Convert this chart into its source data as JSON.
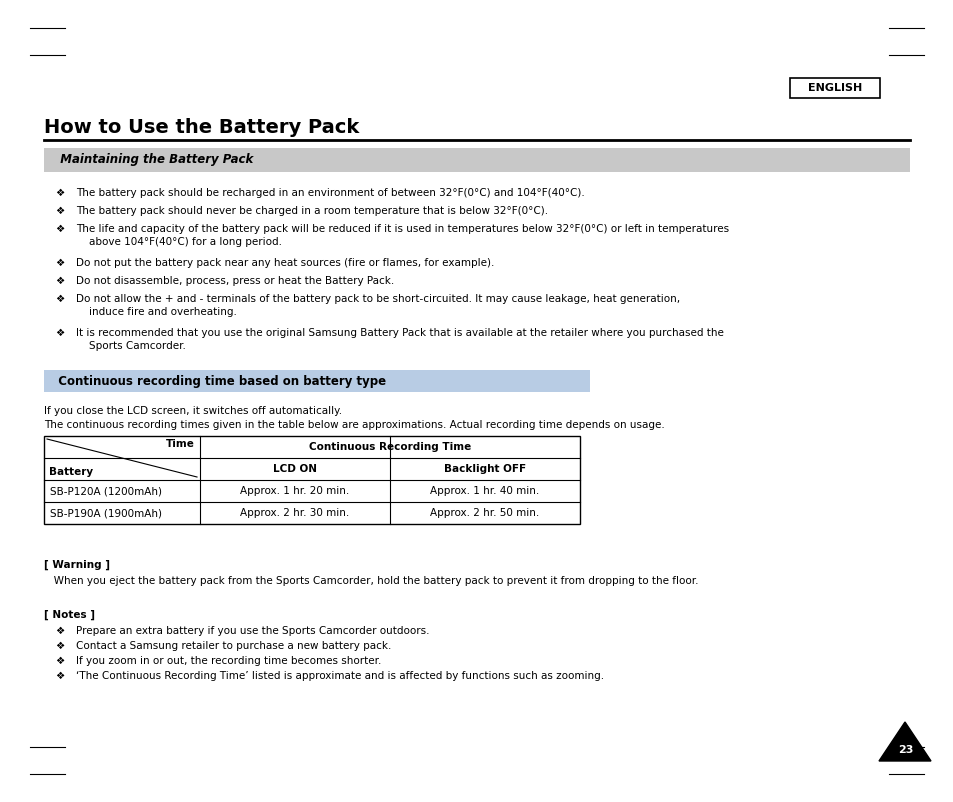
{
  "bg_color": "#ffffff",
  "english_box_text": "ENGLISH",
  "main_title": "How to Use the Battery Pack",
  "section1_header": "  Maintaining the Battery Pack",
  "section1_bg": "#c8c8c8",
  "bullet_symbol": "❖",
  "bullets": [
    "The battery pack should be recharged in an environment of between 32°F(0°C) and 104°F(40°C).",
    "The battery pack should never be charged in a room temperature that is below 32°F(0°C).",
    "The life and capacity of the battery pack will be reduced if it is used in temperatures below 32°F(0°C) or left in temperatures\n    above 104°F(40°C) for a long period.",
    "Do not put the battery pack near any heat sources (fire or flames, for example).",
    "Do not disassemble, process, press or heat the Battery Pack.",
    "Do not allow the + and - terminals of the battery pack to be short-circuited. It may cause leakage, heat generation,\n    induce fire and overheating.",
    "It is recommended that you use the original Samsung Battery Pack that is available at the retailer where you purchased the\n    Sports Camcorder."
  ],
  "section2_header": "  Continuous recording time based on battery type",
  "section2_bg": "#b8cce4",
  "desc_line1": "If you close the LCD screen, it switches off automatically.",
  "desc_line2": "The continuous recording times given in the table below are approximations. Actual recording time depends on usage.",
  "table_header1": "Time",
  "table_header2": "Continuous Recording Time",
  "table_battery": "Battery",
  "table_col2": "LCD ON",
  "table_col3": "Backlight OFF",
  "table_row1_c1": "SB-P120A (1200mAh)",
  "table_row1_c2": "Approx. 1 hr. 20 min.",
  "table_row1_c3": "Approx. 1 hr. 40 min.",
  "table_row2_c1": "SB-P190A (1900mAh)",
  "table_row2_c2": "Approx. 2 hr. 30 min.",
  "table_row2_c3": "Approx. 2 hr. 50 min.",
  "warning_header": "[ Warning ]",
  "warning_text": "   When you eject the battery pack from the Sports Camcorder, hold the battery pack to prevent it from dropping to the floor.",
  "notes_header": "[ Notes ]",
  "notes_bullets": [
    "Prepare an extra battery if you use the Sports Camcorder outdoors.",
    "Contact a Samsung retailer to purchase a new battery pack.",
    "If you zoom in or out, the recording time becomes shorter.",
    "‘The Continuous Recording Time’ listed is approximate and is affected by functions such as zooming."
  ],
  "page_number": "23",
  "font_size_main_title": 14,
  "font_size_section_header": 8.5,
  "font_size_body": 7.5,
  "font_size_english": 8,
  "font_size_page": 8
}
